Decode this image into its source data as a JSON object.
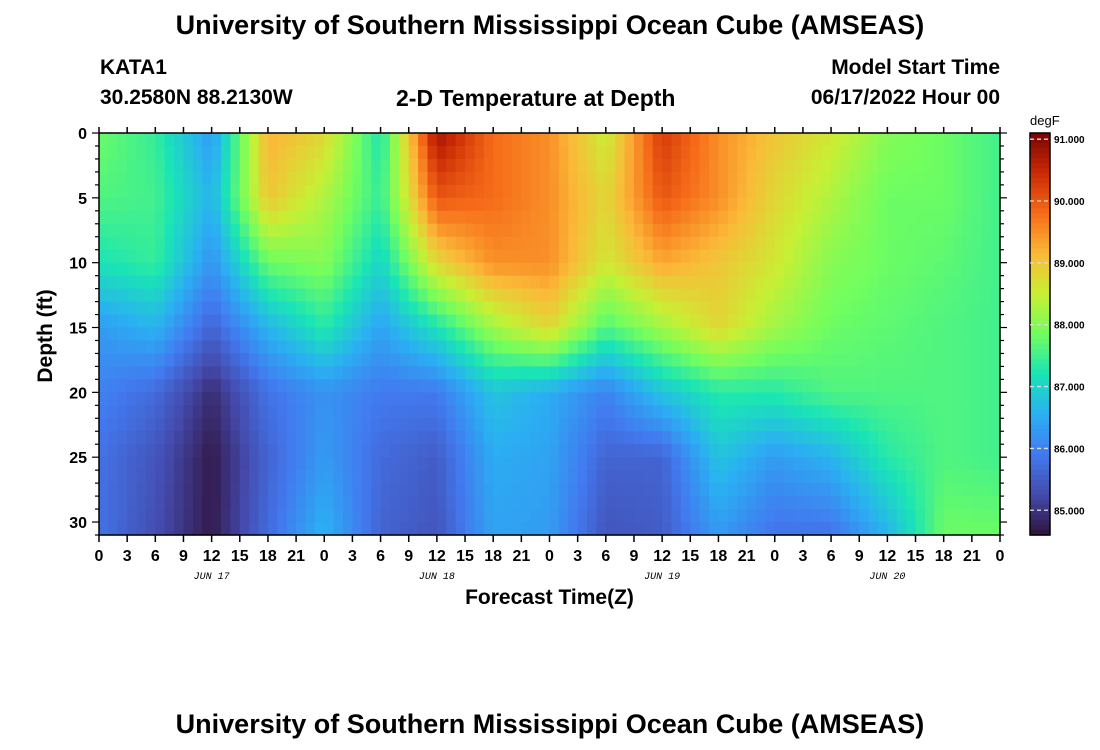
{
  "page": {
    "title": "University of Southern Mississippi Ocean Cube (AMSEAS)",
    "footer_title": "University of Southern Mississippi Ocean Cube (AMSEAS)",
    "station": "KATA1",
    "latlon": "30.2580N  88.2130W",
    "subtitle": "2-D Temperature at Depth",
    "model_start_label": "Model Start Time",
    "model_start_value": "06/17/2022 Hour 00"
  },
  "chart_data": {
    "type": "heatmap",
    "title": "2-D Temperature at Depth",
    "xlabel": "Forecast Time(Z)",
    "ylabel": "Depth (ft)",
    "colorbar_label": "degF",
    "x_tick_labels": [
      "0",
      "3",
      "6",
      "9",
      "12",
      "15",
      "18",
      "21",
      "0",
      "3",
      "6",
      "9",
      "12",
      "15",
      "18",
      "21",
      "0",
      "3",
      "6",
      "9",
      "12",
      "15",
      "18",
      "21",
      "0",
      "3",
      "6",
      "9",
      "12",
      "15",
      "18",
      "21",
      "0"
    ],
    "x_range_hours": [
      0,
      96
    ],
    "x_date_labels": [
      {
        "label": "JUN 17",
        "hour": 12
      },
      {
        "label": "JUN 18",
        "hour": 36
      },
      {
        "label": "JUN 19",
        "hour": 60
      },
      {
        "label": "JUN 20",
        "hour": 84
      }
    ],
    "y_ticks": [
      0,
      5,
      10,
      15,
      20,
      25,
      30
    ],
    "y_tick_labels": [
      "0",
      "5",
      "10",
      "15",
      "20",
      "25",
      "30"
    ],
    "y_range": [
      0,
      31
    ],
    "y_inverted": true,
    "colorbar_ticks": [
      85,
      86,
      87,
      88,
      89,
      90,
      91
    ],
    "colorbar_tick_labels": [
      "85.000",
      "86.000",
      "87.000",
      "88.000",
      "89.000",
      "90.000",
      "91.000"
    ],
    "color_range": [
      84.6,
      91.1
    ],
    "grid_hours": [
      0,
      6,
      12,
      18,
      24,
      30,
      36,
      42,
      48,
      54,
      60,
      66,
      72,
      78,
      84,
      90,
      96
    ],
    "grid_depths": [
      0,
      5,
      10,
      15,
      20,
      25,
      31
    ],
    "temperature_degF": [
      [
        87.8,
        87.4,
        86.3,
        89.2,
        88.8,
        87.2,
        90.8,
        89.8,
        89.5,
        88.5,
        90.3,
        89.5,
        89.0,
        88.6,
        88.0,
        87.8,
        87.5
      ],
      [
        87.6,
        87.5,
        86.6,
        89.0,
        88.3,
        87.4,
        90.0,
        89.8,
        89.5,
        88.8,
        90.0,
        89.5,
        88.8,
        88.3,
        87.8,
        87.8,
        87.5
      ],
      [
        87.2,
        87.4,
        86.2,
        87.8,
        88.0,
        87.0,
        88.8,
        89.5,
        89.5,
        88.6,
        89.3,
        89.0,
        88.6,
        88.0,
        87.8,
        87.7,
        87.5
      ],
      [
        86.3,
        86.6,
        85.6,
        86.6,
        87.3,
        86.4,
        87.2,
        88.2,
        88.8,
        87.6,
        88.2,
        88.8,
        88.2,
        87.8,
        87.7,
        87.6,
        87.5
      ],
      [
        86.0,
        85.7,
        84.9,
        85.8,
        86.2,
        85.9,
        85.9,
        86.8,
        86.5,
        86.0,
        86.8,
        87.3,
        87.3,
        87.6,
        87.6,
        87.6,
        87.5
      ],
      [
        85.8,
        85.4,
        84.7,
        85.6,
        86.3,
        85.7,
        85.5,
        86.5,
        86.4,
        85.6,
        85.6,
        86.8,
        86.3,
        86.6,
        87.3,
        87.6,
        87.5
      ],
      [
        85.8,
        85.3,
        84.7,
        85.7,
        86.6,
        85.6,
        85.4,
        86.4,
        86.3,
        85.4,
        85.5,
        86.3,
        85.8,
        85.8,
        86.6,
        87.8,
        87.8
      ]
    ]
  },
  "colors": {
    "axis": "#000000",
    "frame_bg": "#ffffff"
  }
}
